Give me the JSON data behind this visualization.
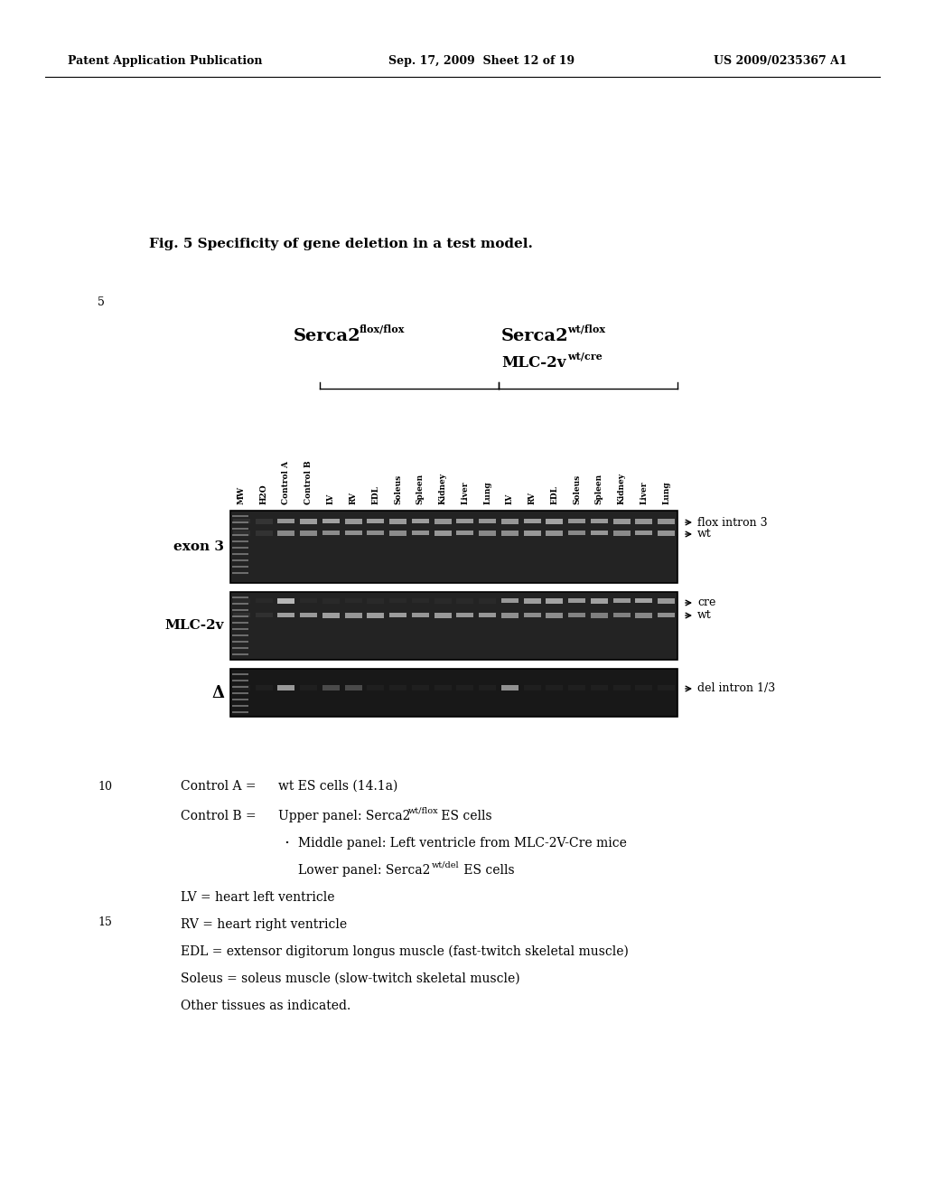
{
  "header_left": "Patent Application Publication",
  "header_mid": "Sep. 17, 2009  Sheet 12 of 19",
  "header_right": "US 2009/0235367 A1",
  "fig_title": "Fig. 5 Specificity of gene deletion in a test model.",
  "line_number_5": "5",
  "line_number_10": "10",
  "line_number_15": "15",
  "col_labels": [
    "MW",
    "H2O",
    "Control A",
    "Control B",
    "LV",
    "RV",
    "EDL",
    "Soleus",
    "Spleen",
    "Kidney",
    "Liver",
    "Lung",
    "LV",
    "RV",
    "EDL",
    "Soleus",
    "Spleen",
    "Kidney",
    "Liver",
    "Lung"
  ],
  "row_label_1": "exon 3",
  "row_label_2": "MLC-2v",
  "row_label_3": "Δ",
  "ann1a": "flox intron 3",
  "ann1b": "wt",
  "ann2a": "cre",
  "ann2b": "wt",
  "ann3a": "del intron 1/3",
  "ctrl_a_line": "Control A =   wt ES cells (14.1a)",
  "ctrl_b_label": "Control B = ",
  "ctrl_b_upper_pre": "Upper panel: Serca2",
  "ctrl_b_upper_sup": "wt/flox",
  "ctrl_b_upper_post": " ES cells",
  "ctrl_b_mid": "Middle panel: Left ventricle from MLC-2V-Cre mice",
  "ctrl_b_low_pre": "Lower panel: Serca2",
  "ctrl_b_low_sup": "wt/del",
  "ctrl_b_low_post": " ES cells",
  "lv_label": "LV = heart left ventricle",
  "rv_label": "RV = heart right ventricle",
  "edl_label": "EDL = extensor digitorum longus muscle (fast-twitch skeletal muscle)",
  "soleus_label": "Soleus = soleus muscle (slow-twitch skeletal muscle)",
  "other_label": "Other tissues as indicated.",
  "bg_color": "#ffffff",
  "text_color": "#000000"
}
